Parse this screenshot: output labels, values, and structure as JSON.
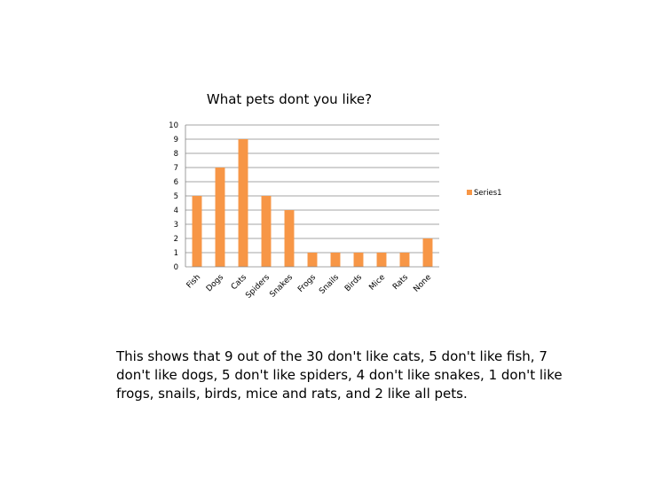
{
  "chart_data": {
    "type": "bar",
    "title": "What pets dont you like?",
    "categories": [
      "Fish",
      "Dogs",
      "Cats",
      "Spiders",
      "Snakes",
      "Frogs",
      "Snails",
      "Birds",
      "Mice",
      "Rats",
      "None"
    ],
    "series": [
      {
        "name": "Series1",
        "values": [
          5,
          7,
          9,
          5,
          4,
          1,
          1,
          1,
          1,
          1,
          2
        ],
        "color": "#F79646"
      }
    ],
    "xlabel": "",
    "ylabel": "",
    "ylim": [
      0,
      10
    ],
    "yticks": [
      0,
      1,
      2,
      3,
      4,
      5,
      6,
      7,
      8,
      9,
      10
    ],
    "grid": true,
    "legend_position": "right",
    "gridline_color": "#868686"
  },
  "caption": "This shows that 9 out of the 30 don't like cats, 5 don't like fish, 7 don't like dogs, 5 don't like spiders, 4 don't like snakes, 1 don't like frogs, snails, birds, mice and rats, and 2 like all pets."
}
